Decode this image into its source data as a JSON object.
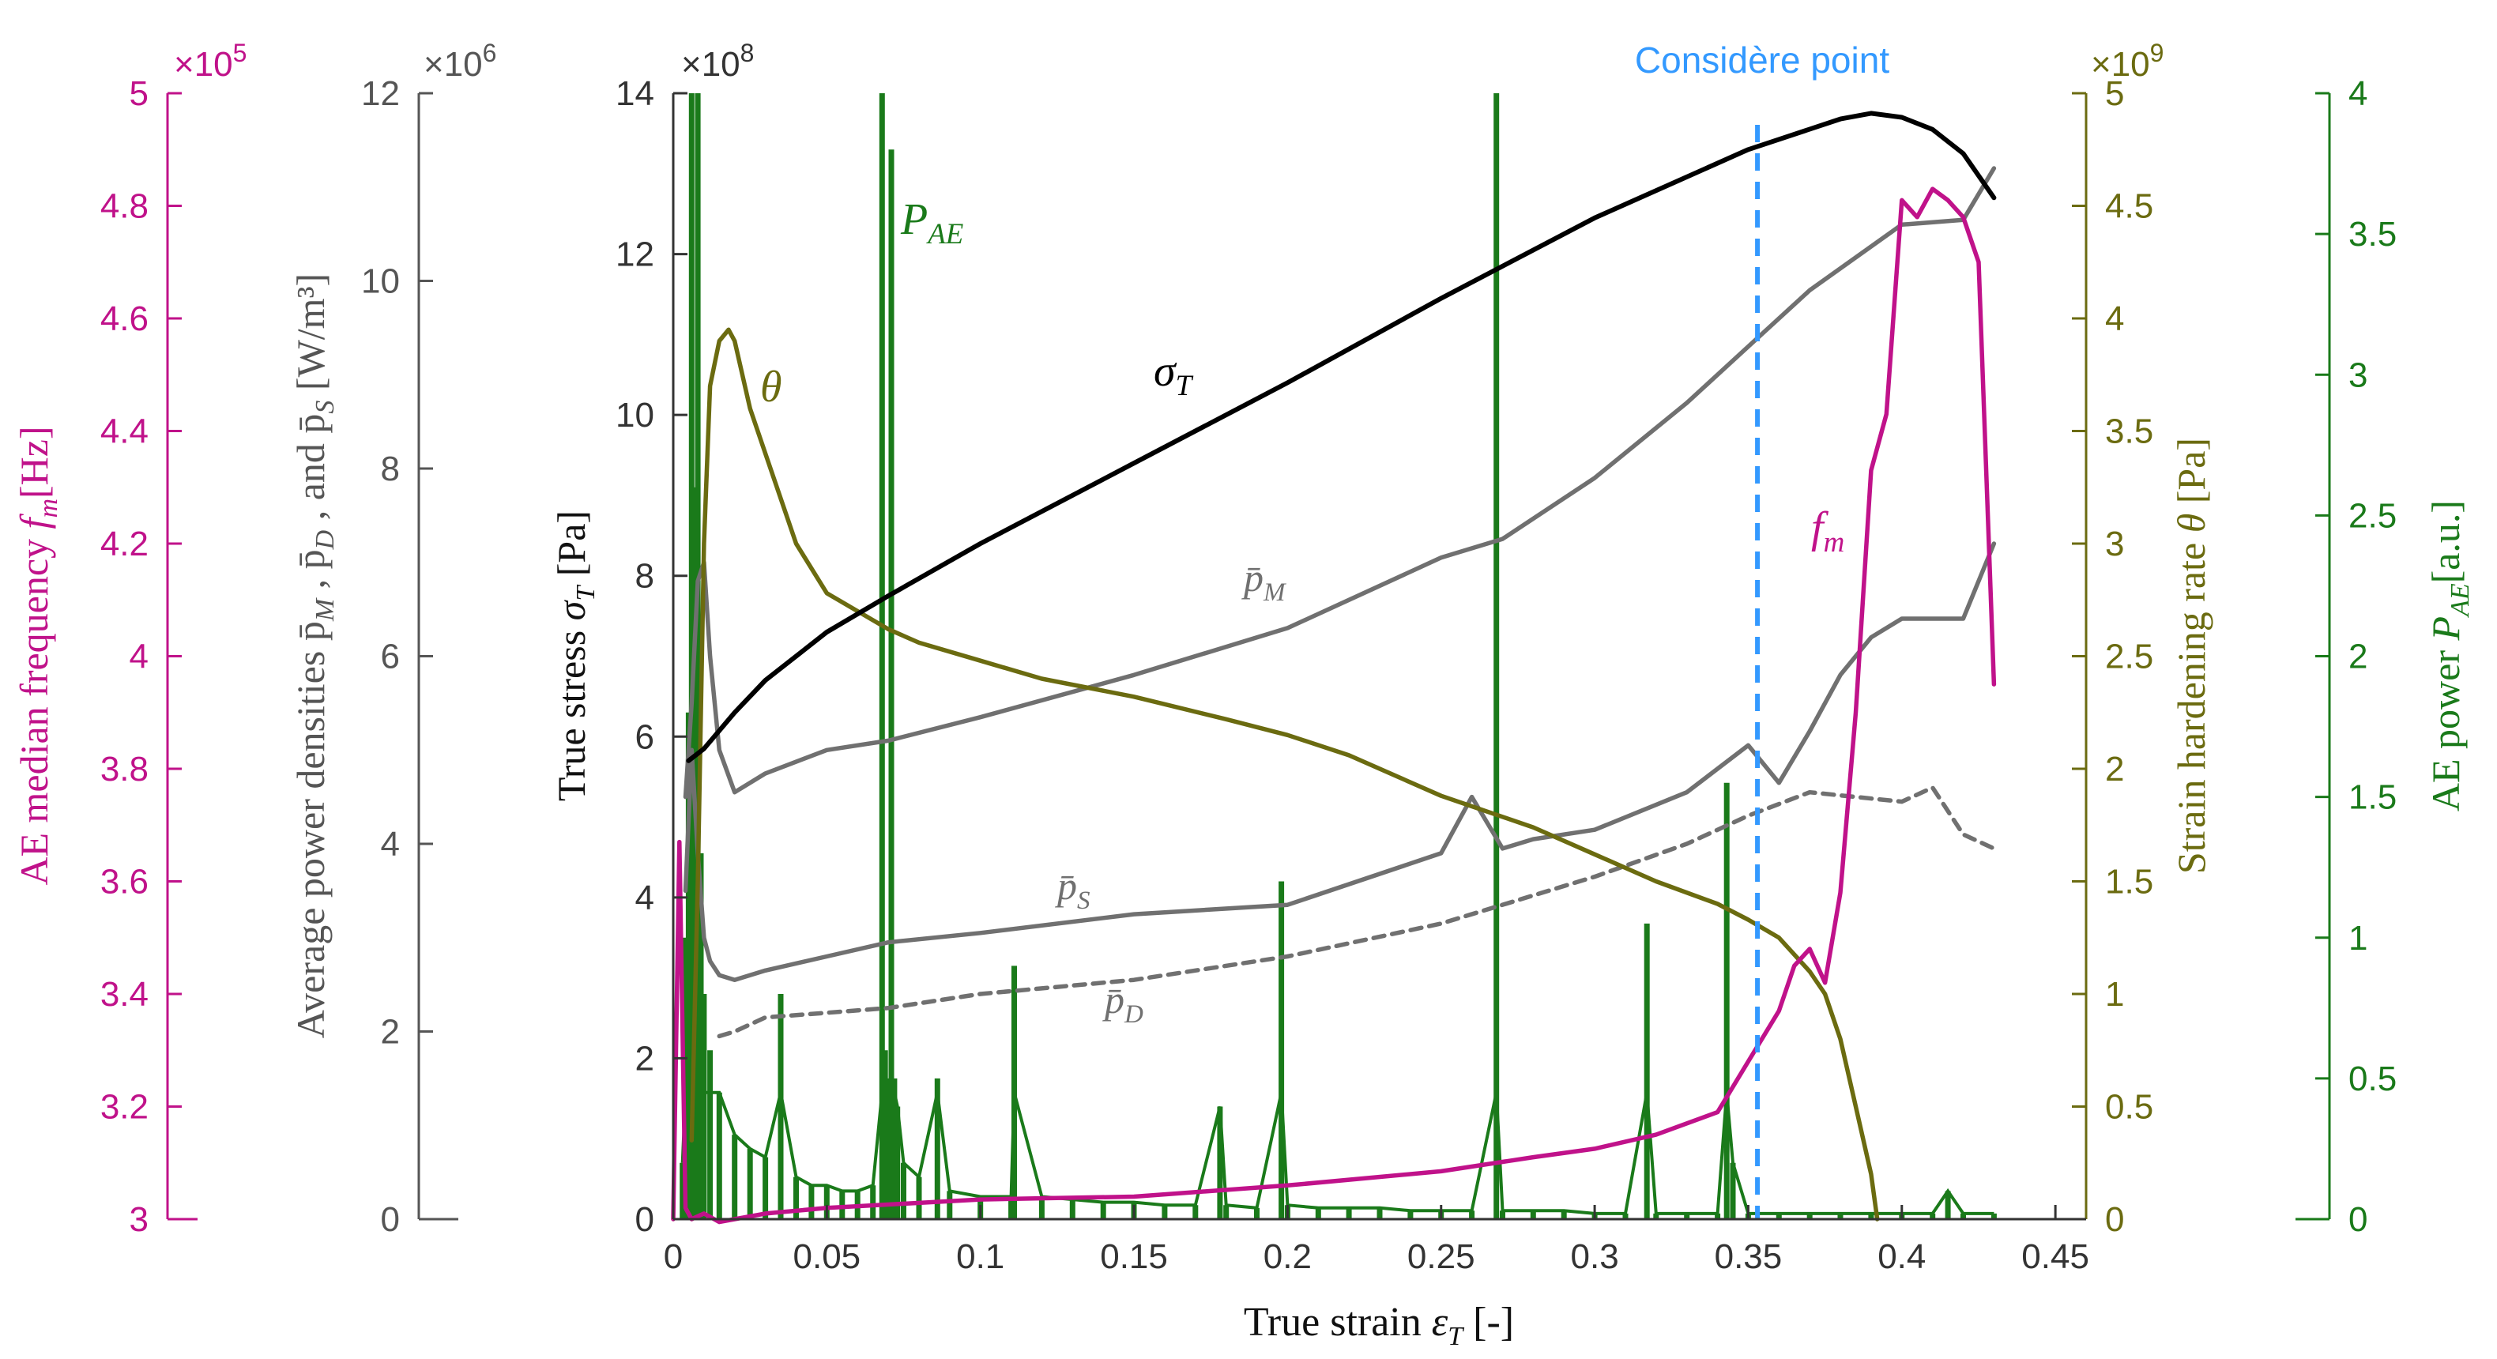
{
  "colors": {
    "fm": "#C0128A",
    "pden": "#555555",
    "stress": "#333333",
    "theta": "#6B6B10",
    "pae": "#1A7A1A",
    "pline": "#707070",
    "considere": "#3399FF"
  },
  "chart_data": {
    "type": "line",
    "annotation": "Considère point",
    "considere_x": 0.353,
    "x_axis": {
      "label_text": "True strain ",
      "label_sym": "ε",
      "label_sub": "T",
      "label_unit": " [-]",
      "range": [
        0,
        0.46
      ],
      "ticks": [
        0,
        0.05,
        0.1,
        0.15,
        0.2,
        0.25,
        0.3,
        0.35,
        0.4,
        0.45
      ],
      "tick_labels": [
        "0",
        "0.05",
        "0.1",
        "0.15",
        "0.2",
        "0.25",
        "0.3",
        "0.35",
        "0.4",
        "0.45"
      ]
    },
    "axes": {
      "fm": {
        "label_text": "AE median frequency ",
        "label_sym": "f",
        "label_sub": "m",
        "label_unit": "[Hz]",
        "range": [
          300000,
          500000
        ],
        "multiplier_base": "×10",
        "multiplier_exp": "5",
        "ticks": [
          300000,
          320000,
          340000,
          360000,
          380000,
          400000,
          420000,
          440000,
          460000,
          480000,
          500000
        ],
        "tick_labels": [
          "3",
          "3.2",
          "3.4",
          "3.6",
          "3.8",
          "4",
          "4.2",
          "4.4",
          "4.6",
          "4.8",
          "5"
        ]
      },
      "pden": {
        "label_text": "Average power densities p̄",
        "label_sub1": "M",
        "label_sep1": " ,  p̄",
        "label_sub2": "D",
        "label_sep2": " ,  and p̄",
        "label_sub3": "S",
        "label_unit": " [W/m³]",
        "range": [
          0,
          12000000
        ],
        "multiplier_base": "×10",
        "multiplier_exp": "6",
        "ticks": [
          0,
          2000000,
          4000000,
          6000000,
          8000000,
          10000000,
          12000000
        ],
        "tick_labels": [
          "0",
          "2",
          "4",
          "6",
          "8",
          "10",
          "12"
        ]
      },
      "stress": {
        "label_text": "True stress ",
        "label_sym": "σ",
        "label_sub": "T",
        "label_unit": " [Pa]",
        "range": [
          0,
          1400000000
        ],
        "multiplier_base": "×10",
        "multiplier_exp": "8",
        "ticks": [
          0,
          200000000,
          400000000,
          600000000,
          800000000,
          1000000000,
          1200000000,
          1400000000
        ],
        "tick_labels": [
          "0",
          "2",
          "4",
          "6",
          "8",
          "10",
          "12",
          "14"
        ]
      },
      "theta": {
        "label_text": "Strain hardening rate ",
        "label_sym": "θ",
        "label_unit": " [Pa]",
        "range": [
          0,
          5000000000
        ],
        "multiplier_base": "×10",
        "multiplier_exp": "9",
        "ticks": [
          0,
          500000000,
          1000000000,
          1500000000,
          2000000000,
          2500000000,
          3000000000,
          3500000000,
          4000000000,
          4500000000,
          5000000000
        ],
        "tick_labels": [
          "0",
          "0.5",
          "1",
          "1.5",
          "2",
          "2.5",
          "3",
          "3.5",
          "4",
          "4.5",
          "5"
        ]
      },
      "pae": {
        "label_text": "AE power ",
        "label_sym": "P",
        "label_sub": "AE",
        "label_unit": "[a.u.]",
        "range": [
          0,
          4
        ],
        "ticks": [
          0,
          0.5,
          1,
          1.5,
          2,
          2.5,
          3,
          3.5,
          4
        ],
        "tick_labels": [
          "0",
          "0.5",
          "1",
          "1.5",
          "2",
          "2.5",
          "3",
          "3.5",
          "4"
        ]
      }
    },
    "series": [
      {
        "name": "sigma_T",
        "label_sym": "σ",
        "label_sub": "T",
        "axis": "stress",
        "style": "solid",
        "x": [
          0.005,
          0.01,
          0.02,
          0.03,
          0.05,
          0.07,
          0.1,
          0.15,
          0.2,
          0.25,
          0.3,
          0.35,
          0.38,
          0.39,
          0.4,
          0.41,
          0.42,
          0.43
        ],
        "values": [
          570000000,
          585000000,
          630000000,
          670000000,
          730000000,
          775000000,
          840000000,
          940000000,
          1040000000,
          1145000000,
          1245000000,
          1330000000,
          1368000000,
          1375000000,
          1370000000,
          1355000000,
          1325000000,
          1270000000
        ]
      },
      {
        "name": "theta",
        "label_sym": "θ",
        "axis": "theta",
        "style": "solid",
        "x": [
          0.006,
          0.008,
          0.01,
          0.012,
          0.015,
          0.018,
          0.02,
          0.025,
          0.03,
          0.04,
          0.05,
          0.06,
          0.07,
          0.08,
          0.1,
          0.12,
          0.15,
          0.18,
          0.2,
          0.22,
          0.25,
          0.28,
          0.3,
          0.32,
          0.34,
          0.35,
          0.36,
          0.37,
          0.375,
          0.38,
          0.385,
          0.39,
          0.392
        ],
        "values": [
          350000000,
          1500000000,
          3000000000,
          3700000000,
          3900000000,
          3950000000,
          3900000000,
          3600000000,
          3400000000,
          3000000000,
          2780000000,
          2700000000,
          2620000000,
          2560000000,
          2480000000,
          2400000000,
          2320000000,
          2220000000,
          2150000000,
          2060000000,
          1880000000,
          1740000000,
          1620000000,
          1500000000,
          1400000000,
          1330000000,
          1250000000,
          1100000000,
          1000000000,
          800000000,
          500000000,
          200000000,
          0
        ]
      },
      {
        "name": "p_M",
        "label_sym": "p̄",
        "label_sub": "M",
        "axis": "pden",
        "style": "solid",
        "x": [
          0.004,
          0.006,
          0.008,
          0.01,
          0.012,
          0.015,
          0.02,
          0.03,
          0.05,
          0.07,
          0.1,
          0.15,
          0.2,
          0.25,
          0.27,
          0.3,
          0.33,
          0.35,
          0.37,
          0.4,
          0.42,
          0.43
        ],
        "values": [
          4500000,
          5500000,
          6800000,
          7000000,
          6000000,
          5000000,
          4550000,
          4750000,
          5000000,
          5100000,
          5350000,
          5800000,
          6300000,
          7050000,
          7250000,
          7900000,
          8700000,
          9300000,
          9900000,
          10600000,
          10650000,
          11200000
        ]
      },
      {
        "name": "p_S",
        "label_sym": "p̄",
        "label_sub": "S",
        "axis": "pden",
        "style": "solid",
        "x": [
          0.004,
          0.006,
          0.008,
          0.01,
          0.012,
          0.015,
          0.02,
          0.03,
          0.05,
          0.07,
          0.1,
          0.15,
          0.2,
          0.25,
          0.26,
          0.27,
          0.28,
          0.3,
          0.33,
          0.35,
          0.36,
          0.37,
          0.38,
          0.39,
          0.4,
          0.42,
          0.43
        ],
        "values": [
          3500000,
          5000000,
          3900000,
          3000000,
          2750000,
          2600000,
          2550000,
          2650000,
          2800000,
          2950000,
          3050000,
          3250000,
          3350000,
          3900000,
          4500000,
          3950000,
          4050000,
          4150000,
          4550000,
          5050000,
          4650000,
          5200000,
          5800000,
          6200000,
          6400000,
          6400000,
          7200000
        ]
      },
      {
        "name": "p_D",
        "label_sym": "p̄",
        "label_sub": "D",
        "axis": "pden",
        "style": "dashed",
        "x": [
          0.015,
          0.02,
          0.03,
          0.05,
          0.07,
          0.1,
          0.15,
          0.2,
          0.25,
          0.3,
          0.33,
          0.35,
          0.37,
          0.4,
          0.41,
          0.42,
          0.43
        ],
        "values": [
          1950000,
          2000000,
          2150000,
          2200000,
          2250000,
          2400000,
          2550000,
          2800000,
          3150000,
          3650000,
          4000000,
          4300000,
          4550000,
          4450000,
          4600000,
          4100000,
          3950000
        ]
      },
      {
        "name": "f_m",
        "label_sym": "f",
        "label_sub": "m",
        "axis": "fm",
        "style": "solid",
        "x": [
          0.0,
          0.002,
          0.004,
          0.006,
          0.008,
          0.01,
          0.015,
          0.02,
          0.03,
          0.05,
          0.1,
          0.15,
          0.2,
          0.25,
          0.28,
          0.3,
          0.32,
          0.34,
          0.35,
          0.36,
          0.365,
          0.37,
          0.375,
          0.38,
          0.385,
          0.39,
          0.395,
          0.4,
          0.405,
          0.41,
          0.415,
          0.42,
          0.425,
          0.43
        ],
        "values": [
          300000,
          367000,
          302000,
          300000,
          300500,
          301000,
          299500,
          300000,
          301000,
          302000,
          303500,
          304000,
          306000,
          308500,
          311000,
          312500,
          315000,
          319000,
          328000,
          337000,
          345000,
          348000,
          342000,
          358000,
          390000,
          433000,
          443000,
          481000,
          478000,
          483000,
          481000,
          478000,
          470000,
          395000
        ]
      },
      {
        "name": "P_AE",
        "label_sym": "P",
        "label_sub": "AE",
        "axis": "pae",
        "style": "spikes",
        "x": [
          0.003,
          0.004,
          0.005,
          0.006,
          0.007,
          0.008,
          0.009,
          0.01,
          0.012,
          0.015,
          0.02,
          0.025,
          0.03,
          0.035,
          0.04,
          0.045,
          0.05,
          0.055,
          0.06,
          0.065,
          0.068,
          0.069,
          0.07,
          0.071,
          0.072,
          0.073,
          0.075,
          0.08,
          0.086,
          0.09,
          0.1,
          0.11,
          0.111,
          0.12,
          0.13,
          0.14,
          0.15,
          0.16,
          0.17,
          0.178,
          0.18,
          0.19,
          0.198,
          0.2,
          0.21,
          0.22,
          0.23,
          0.24,
          0.25,
          0.26,
          0.268,
          0.27,
          0.28,
          0.29,
          0.3,
          0.31,
          0.317,
          0.32,
          0.33,
          0.34,
          0.343,
          0.345,
          0.35,
          0.36,
          0.37,
          0.38,
          0.39,
          0.4,
          0.41,
          0.415,
          0.42,
          0.43
        ],
        "values": [
          0.2,
          1.0,
          1.8,
          4.0,
          2.6,
          4.0,
          1.3,
          0.8,
          0.6,
          0.45,
          0.3,
          0.25,
          0.22,
          0.8,
          0.15,
          0.12,
          0.12,
          0.1,
          0.1,
          0.12,
          4.0,
          0.6,
          0.5,
          3.8,
          0.5,
          0.4,
          0.2,
          0.15,
          0.5,
          0.1,
          0.08,
          0.08,
          0.9,
          0.08,
          0.07,
          0.06,
          0.06,
          0.05,
          0.05,
          0.4,
          0.05,
          0.04,
          1.2,
          0.05,
          0.04,
          0.04,
          0.04,
          0.03,
          0.03,
          0.03,
          4.0,
          0.03,
          0.03,
          0.03,
          0.02,
          0.02,
          1.05,
          0.02,
          0.02,
          0.02,
          1.55,
          0.2,
          0.02,
          0.02,
          0.02,
          0.02,
          0.02,
          0.02,
          0.02,
          0.1,
          0.02,
          0.02
        ]
      }
    ]
  }
}
